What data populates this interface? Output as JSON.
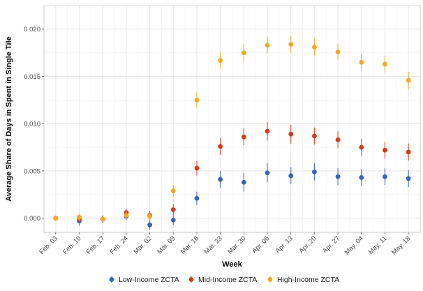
{
  "chart_data": {
    "type": "scatter",
    "xlabel": "Week",
    "ylabel": "Average Share of Days in Spent in Single Tile",
    "categories": [
      "Feb. 03",
      "Feb. 10",
      "Feb. 17",
      "Feb. 24",
      "Mar. 02",
      "Mar. 09",
      "Mar. 16",
      "Mar. 23",
      "Mar. 30",
      "Apr. 06",
      "Apr. 13",
      "Apr. 20",
      "Apr. 27",
      "May. 04",
      "May. 11",
      "May. 18"
    ],
    "ylim": [
      -0.0015,
      0.0225
    ],
    "yticks": [
      0.0,
      0.005,
      0.01,
      0.015,
      0.02
    ],
    "ytick_labels": [
      "0.000",
      "0.005",
      "0.010",
      "0.015",
      "0.020"
    ],
    "grid": true,
    "legend_position": "bottom",
    "error_bars": true,
    "series": [
      {
        "name": "Low-Income ZCTA",
        "color": "#3a62b8",
        "values": [
          0.0,
          -0.0003,
          -0.0001,
          0.0002,
          -0.0007,
          -0.0002,
          0.0021,
          0.0041,
          0.0038,
          0.0048,
          0.0045,
          0.0049,
          0.0044,
          0.0043,
          0.0044,
          0.0042
        ],
        "lower": [
          0.0,
          -0.0008,
          -0.0005,
          -0.0002,
          -0.0012,
          -0.0007,
          0.0014,
          0.0032,
          0.0028,
          0.0038,
          0.0036,
          0.004,
          0.0035,
          0.0034,
          0.0035,
          0.0033
        ],
        "upper": [
          0.0,
          0.0002,
          0.0003,
          0.0006,
          -0.0002,
          0.0003,
          0.0028,
          0.005,
          0.0048,
          0.0058,
          0.0054,
          0.0058,
          0.0053,
          0.0052,
          0.0053,
          0.0051
        ]
      },
      {
        "name": "Mid-Income ZCTA",
        "color": "#d33a1d",
        "values": [
          0.0,
          -0.0001,
          -0.0001,
          0.0006,
          0.0003,
          0.0009,
          0.0053,
          0.0076,
          0.0086,
          0.0092,
          0.0089,
          0.0087,
          0.0083,
          0.0075,
          0.0072,
          0.007
        ],
        "lower": [
          0.0,
          -0.0005,
          -0.0004,
          0.0002,
          -0.0002,
          0.0003,
          0.0045,
          0.0067,
          0.0077,
          0.0082,
          0.0079,
          0.0078,
          0.0074,
          0.0066,
          0.0063,
          0.0061
        ],
        "upper": [
          0.0,
          0.0003,
          0.0002,
          0.001,
          0.0008,
          0.0015,
          0.0061,
          0.0085,
          0.0095,
          0.0102,
          0.0099,
          0.0096,
          0.0092,
          0.0084,
          0.0081,
          0.0079
        ]
      },
      {
        "name": "High-Income ZCTA",
        "color": "#f2a922",
        "values": [
          0.0,
          0.0001,
          -0.0001,
          0.0003,
          0.0002,
          0.0029,
          0.0125,
          0.0167,
          0.0175,
          0.0183,
          0.0184,
          0.0181,
          0.0176,
          0.0165,
          0.0163,
          0.0146
        ],
        "lower": [
          0.0,
          -0.0003,
          -0.0004,
          -0.0001,
          -0.0002,
          0.0023,
          0.0117,
          0.0158,
          0.0166,
          0.0174,
          0.0175,
          0.0172,
          0.0167,
          0.0156,
          0.0154,
          0.0137
        ],
        "upper": [
          0.0,
          0.0005,
          0.0002,
          0.0007,
          0.0006,
          0.0035,
          0.0133,
          0.0176,
          0.0184,
          0.0192,
          0.0193,
          0.019,
          0.0185,
          0.0174,
          0.0172,
          0.0155
        ]
      }
    ]
  }
}
